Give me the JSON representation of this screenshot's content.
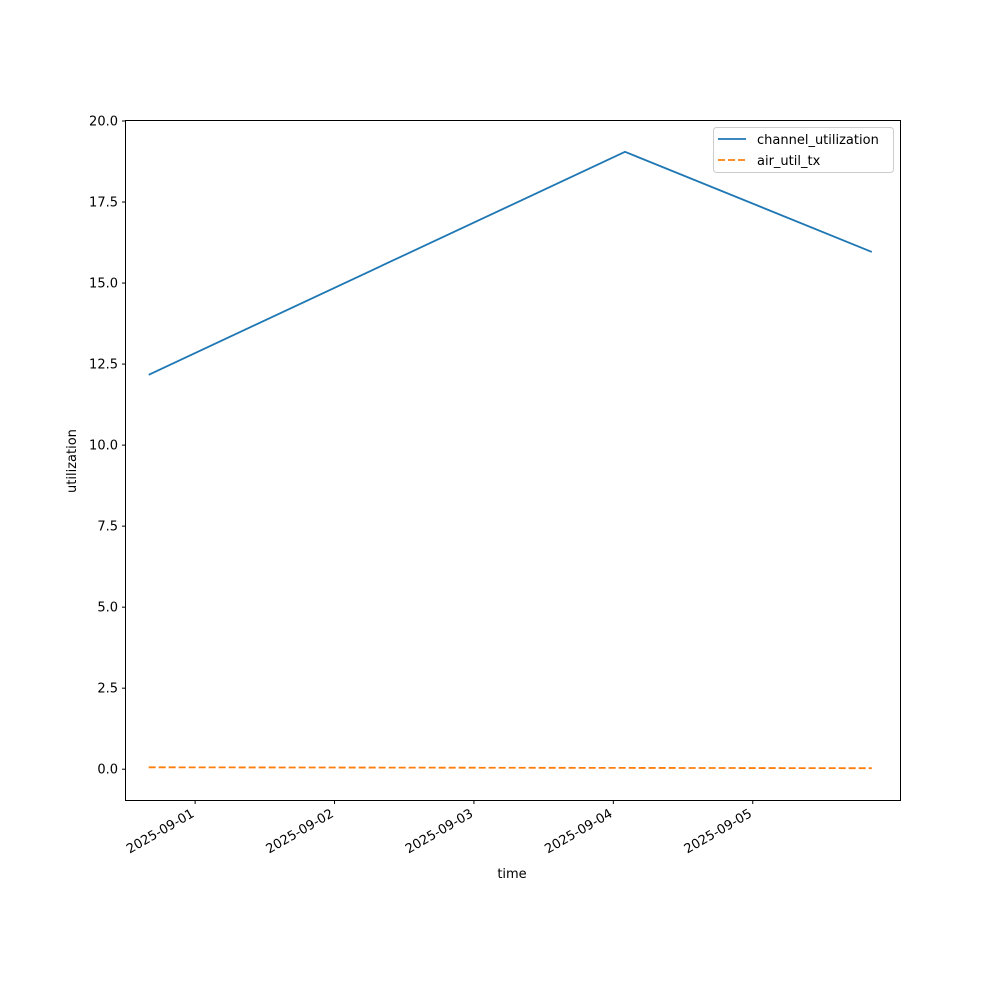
{
  "chart_data": {
    "type": "line",
    "title": "",
    "xlabel": "time",
    "ylabel": "utilization",
    "x_tick_labels": [
      "2025-09-01",
      "2025-09-02",
      "2025-09-03",
      "2025-09-04",
      "2025-09-05"
    ],
    "y_tick_labels": [
      "0.0",
      "2.5",
      "5.0",
      "7.5",
      "10.0",
      "12.5",
      "15.0",
      "17.5",
      "20.0"
    ],
    "xlim": [
      "2025-08-31 12:06",
      "2025-09-06 01:21"
    ],
    "ylim": [
      -0.95,
      20.0
    ],
    "grid": false,
    "legend_position": "top-right",
    "series": [
      {
        "name": "channel_utilization",
        "color": "#1f77b4",
        "style": "solid",
        "x": [
          "2025-08-31 16:00",
          "2025-09-04 02:00",
          "2025-09-05 20:30"
        ],
        "y": [
          12.17,
          19.05,
          15.96
        ]
      },
      {
        "name": "air_util_tx",
        "color": "#ff7f0e",
        "style": "dashed",
        "x": [
          "2025-08-31 16:00",
          "2025-09-04 02:00",
          "2025-09-05 20:30"
        ],
        "y": [
          0.06,
          0.04,
          0.03
        ]
      }
    ]
  }
}
